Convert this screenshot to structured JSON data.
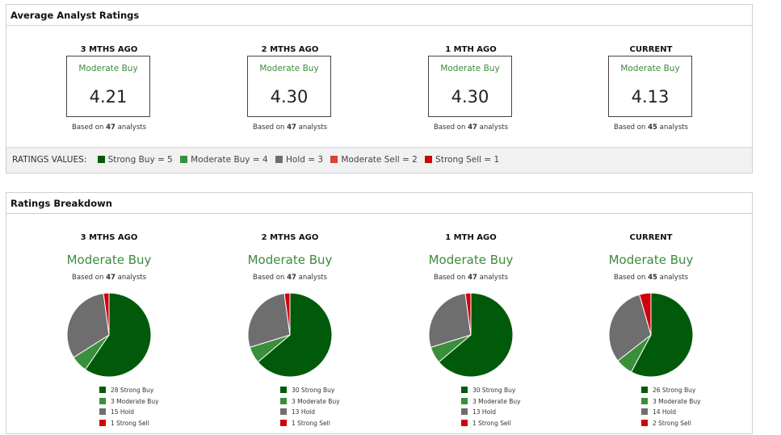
{
  "colors": {
    "strong_buy": "#005a0a",
    "moderate_buy": "#3a8f3a",
    "hold": "#6e6e6e",
    "moderate_sell": "#d9413a",
    "strong_sell": "#d0000c"
  },
  "avg": {
    "title": "Average Analyst Ratings",
    "cols": [
      {
        "head": "3 MTHS AGO",
        "label": "Moderate Buy",
        "value": "4.21",
        "pre": "Based on",
        "count": "47",
        "post": "analysts"
      },
      {
        "head": "2 MTHS AGO",
        "label": "Moderate Buy",
        "value": "4.30",
        "pre": "Based on",
        "count": "47",
        "post": "analysts"
      },
      {
        "head": "1 MTH AGO",
        "label": "Moderate Buy",
        "value": "4.30",
        "pre": "Based on",
        "count": "47",
        "post": "analysts"
      },
      {
        "head": "CURRENT",
        "label": "Moderate Buy",
        "value": "4.13",
        "pre": "Based on",
        "count": "45",
        "post": "analysts"
      }
    ],
    "legend": {
      "title": "RATINGS VALUES:",
      "items": [
        "Strong Buy = 5",
        "Moderate Buy = 4",
        "Hold = 3",
        "Moderate Sell = 2",
        "Strong Sell = 1"
      ]
    }
  },
  "breakdown": {
    "title": "Ratings Breakdown",
    "cols": [
      {
        "head": "3 MTHS AGO",
        "label": "Moderate Buy",
        "pre": "Based on",
        "count": "47",
        "post": "analysts",
        "legend": [
          "28 Strong Buy",
          "3 Moderate Buy",
          "15 Hold",
          "1 Strong Sell"
        ]
      },
      {
        "head": "2 MTHS AGO",
        "label": "Moderate Buy",
        "pre": "Based on",
        "count": "47",
        "post": "analysts",
        "legend": [
          "30 Strong Buy",
          "3 Moderate Buy",
          "13 Hold",
          "1 Strong Sell"
        ]
      },
      {
        "head": "1 MTH AGO",
        "label": "Moderate Buy",
        "pre": "Based on",
        "count": "47",
        "post": "analysts",
        "legend": [
          "30 Strong Buy",
          "3 Moderate Buy",
          "13 Hold",
          "1 Strong Sell"
        ]
      },
      {
        "head": "CURRENT",
        "label": "Moderate Buy",
        "pre": "Based on",
        "count": "45",
        "post": "analysts",
        "legend": [
          "26 Strong Buy",
          "3 Moderate Buy",
          "14 Hold",
          "2 Strong Sell"
        ]
      }
    ]
  },
  "chart_data": [
    {
      "type": "pie",
      "categories": [
        "Strong Buy",
        "Moderate Buy",
        "Hold",
        "Strong Sell"
      ],
      "values": [
        28,
        3,
        15,
        1
      ]
    },
    {
      "type": "pie",
      "categories": [
        "Strong Buy",
        "Moderate Buy",
        "Hold",
        "Strong Sell"
      ],
      "values": [
        30,
        3,
        13,
        1
      ]
    },
    {
      "type": "pie",
      "categories": [
        "Strong Buy",
        "Moderate Buy",
        "Hold",
        "Strong Sell"
      ],
      "values": [
        30,
        3,
        13,
        1
      ]
    },
    {
      "type": "pie",
      "categories": [
        "Strong Buy",
        "Moderate Buy",
        "Hold",
        "Strong Sell"
      ],
      "values": [
        26,
        3,
        14,
        2
      ]
    }
  ]
}
